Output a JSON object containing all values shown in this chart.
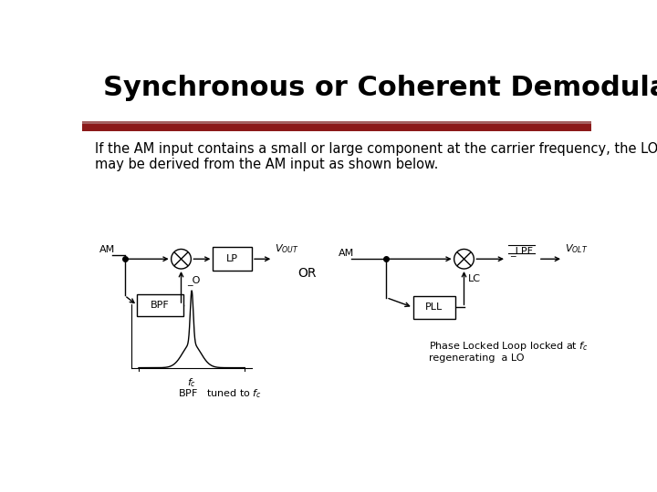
{
  "title": "Synchronous or Coherent Demodulation",
  "title_fontsize": 22,
  "title_fontweight": "bold",
  "bg_color": "#ffffff",
  "bar_color": "#8B1A1A",
  "body_text": "If the AM input contains a small or large component at the carrier frequency, the LO\nmay be derived from the AM input as shown below.",
  "body_fontsize": 10.5,
  "or_text": "OR",
  "left_am_label": "AM",
  "left_bpf_label": "BPF",
  "left_lpf_label": "LP",
  "left_lo_label": "_O",
  "left_vout_label": "V_OUT",
  "left_bpf_caption": "BPF   tuned to f_c",
  "right_am_label": "AM",
  "right_pll_label": "PLL",
  "right_lc_label": "LC",
  "right_lpf_label": "_LPF",
  "right_vout_label": "V_OLT",
  "right_caption1": "Phase Locked Loop locked at f_c",
  "right_caption2": "regenerating  a LO"
}
